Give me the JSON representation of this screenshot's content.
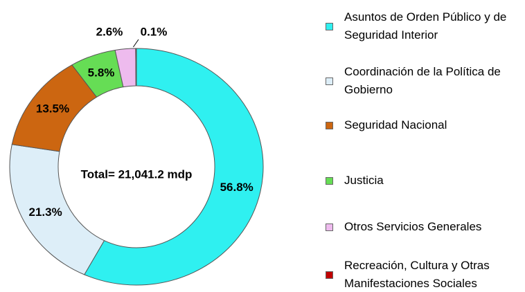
{
  "chart_data": {
    "type": "pie",
    "annotation": "Total= 21,041.2 mdp",
    "categories": [
      "Asuntos de Orden Público y de Seguridad Interior",
      "Coordinación de la Política de Gobierno",
      "Seguridad Nacional",
      "Justicia",
      "Otros Servicios Generales",
      "Recreación, Cultura y Otras Manifestaciones Sociales"
    ],
    "values": [
      56.8,
      21.3,
      13.5,
      5.8,
      2.6,
      0.1
    ],
    "value_labels": [
      "56.8%",
      "21.3%",
      "13.5%",
      "5.8%",
      "2.6%",
      "0.1%"
    ],
    "colors": [
      "#2ff0f0",
      "#ddeef8",
      "#cc6611",
      "#66dd55",
      "#eebbee",
      "#c00000"
    ],
    "legend": "right"
  }
}
